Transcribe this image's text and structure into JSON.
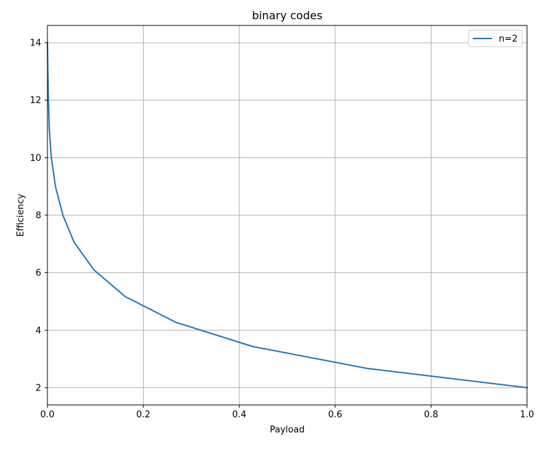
{
  "chart_data": {
    "type": "line",
    "title": "binary codes",
    "xlabel": "Payload",
    "ylabel": "Efficiency",
    "xlim": [
      0,
      1
    ],
    "ylim": [
      1.4,
      14.6
    ],
    "xticks": [
      0,
      0.2,
      0.4,
      0.6,
      0.8,
      1.0
    ],
    "xtick_labels": [
      "0.0",
      "0.2",
      "0.4",
      "0.6",
      "0.8",
      "1.0"
    ],
    "yticks": [
      2,
      4,
      6,
      8,
      10,
      12,
      14
    ],
    "ytick_labels": [
      "2",
      "4",
      "6",
      "8",
      "10",
      "12",
      "14"
    ],
    "grid": true,
    "legend_position": "top-right",
    "series": [
      {
        "name": "n=2",
        "color": "#1f77b4",
        "x": [
          0.0001,
          0.0009,
          0.0021,
          0.0039,
          0.0082,
          0.0167,
          0.0323,
          0.0556,
          0.0968,
          0.1622,
          0.2683,
          0.4286,
          0.6667,
          1.0
        ],
        "y": [
          14,
          13,
          12,
          11,
          10,
          9,
          8,
          7.06,
          6.1,
          5.17,
          4.27,
          3.43,
          2.67,
          2
        ]
      }
    ]
  }
}
